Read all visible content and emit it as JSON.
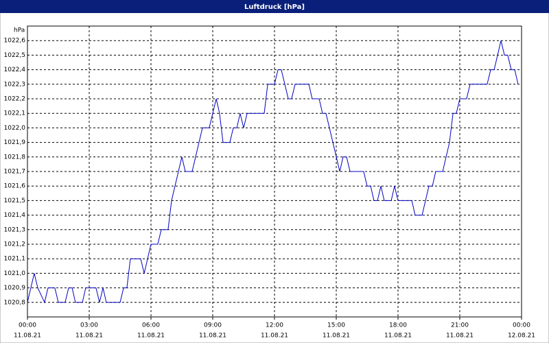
{
  "chart_data": {
    "type": "line",
    "title": "Luftdruck [hPa]",
    "ylabel": "hPa",
    "color": "#0000c0",
    "grid": true,
    "x": [
      0,
      0.33,
      0.5,
      0.83,
      1,
      1.33,
      1.5,
      1.83,
      2,
      2.17,
      2.33,
      2.67,
      2.83,
      3.33,
      3.5,
      3.67,
      3.83,
      4.5,
      4.67,
      4.83,
      5,
      5.5,
      5.67,
      6,
      6.33,
      6.5,
      6.83,
      7,
      7.5,
      7.67,
      8,
      8.5,
      8.83,
      9.17,
      9.33,
      9.5,
      9.83,
      10,
      10.17,
      10.33,
      10.5,
      10.67,
      11.5,
      11.67,
      12,
      12.17,
      12.33,
      12.5,
      12.67,
      12.83,
      13,
      13.67,
      13.83,
      14.17,
      14.33,
      14.5,
      15.17,
      15.33,
      15.5,
      15.67,
      16.33,
      16.5,
      16.67,
      16.83,
      17,
      17.17,
      17.33,
      17.67,
      17.83,
      18,
      18.67,
      18.83,
      19.17,
      19.5,
      19.67,
      19.83,
      20.17,
      20.5,
      20.67,
      20.83,
      21,
      21.33,
      21.5,
      22.33,
      22.5,
      22.67,
      23,
      23.17,
      23.33,
      23.5,
      23.67,
      23.83
    ],
    "values": [
      1020.8,
      1021.0,
      1020.9,
      1020.8,
      1020.9,
      1020.9,
      1020.8,
      1020.8,
      1020.9,
      1020.9,
      1020.8,
      1020.8,
      1020.9,
      1020.9,
      1020.8,
      1020.9,
      1020.8,
      1020.8,
      1020.9,
      1020.9,
      1021.1,
      1021.1,
      1021.0,
      1021.2,
      1021.2,
      1021.3,
      1021.3,
      1021.5,
      1021.8,
      1021.7,
      1021.7,
      1022.0,
      1022.0,
      1022.2,
      1022.1,
      1021.9,
      1021.9,
      1022.0,
      1022.0,
      1022.1,
      1022.0,
      1022.1,
      1022.1,
      1022.3,
      1022.3,
      1022.4,
      1022.4,
      1022.3,
      1022.2,
      1022.2,
      1022.3,
      1022.3,
      1022.2,
      1022.2,
      1022.1,
      1022.1,
      1021.7,
      1021.8,
      1021.8,
      1021.7,
      1021.7,
      1021.6,
      1021.6,
      1021.5,
      1021.5,
      1021.6,
      1021.5,
      1021.5,
      1021.6,
      1021.5,
      1021.5,
      1021.4,
      1021.4,
      1021.6,
      1021.6,
      1021.7,
      1021.7,
      1021.9,
      1022.1,
      1022.1,
      1022.2,
      1022.2,
      1022.3,
      1022.3,
      1022.4,
      1022.4,
      1022.6,
      1022.5,
      1022.5,
      1022.4,
      1022.4,
      1022.3
    ],
    "xlim": [
      0,
      24
    ],
    "ylim": [
      1020.7,
      1022.7
    ],
    "xticks": [
      {
        "value": 0,
        "label": "00:00",
        "date": "11.08.21"
      },
      {
        "value": 3,
        "label": "03:00",
        "date": "11.08.21"
      },
      {
        "value": 6,
        "label": "06:00",
        "date": "11.08.21"
      },
      {
        "value": 9,
        "label": "09:00",
        "date": "11.08.21"
      },
      {
        "value": 12,
        "label": "12:00",
        "date": "11.08.21"
      },
      {
        "value": 15,
        "label": "15:00",
        "date": "11.08.21"
      },
      {
        "value": 18,
        "label": "18:00",
        "date": "11.08.21"
      },
      {
        "value": 21,
        "label": "21:00",
        "date": "11.08.21"
      },
      {
        "value": 24,
        "label": "00:00",
        "date": "12.08.21"
      }
    ],
    "yticks": [
      {
        "value": 1020.8,
        "label": "1020,8"
      },
      {
        "value": 1020.9,
        "label": "1020,9"
      },
      {
        "value": 1021.0,
        "label": "1021,0"
      },
      {
        "value": 1021.1,
        "label": "1021,1"
      },
      {
        "value": 1021.2,
        "label": "1021,2"
      },
      {
        "value": 1021.3,
        "label": "1021,3"
      },
      {
        "value": 1021.4,
        "label": "1021,4"
      },
      {
        "value": 1021.5,
        "label": "1021,5"
      },
      {
        "value": 1021.6,
        "label": "1021,6"
      },
      {
        "value": 1021.7,
        "label": "1021,7"
      },
      {
        "value": 1021.8,
        "label": "1021,8"
      },
      {
        "value": 1021.9,
        "label": "1021,9"
      },
      {
        "value": 1022.0,
        "label": "1022,0"
      },
      {
        "value": 1022.1,
        "label": "1022,1"
      },
      {
        "value": 1022.2,
        "label": "1022,2"
      },
      {
        "value": 1022.3,
        "label": "1022,3"
      },
      {
        "value": 1022.4,
        "label": "1022,4"
      },
      {
        "value": 1022.5,
        "label": "1022,5"
      },
      {
        "value": 1022.6,
        "label": "1022,6"
      }
    ]
  }
}
